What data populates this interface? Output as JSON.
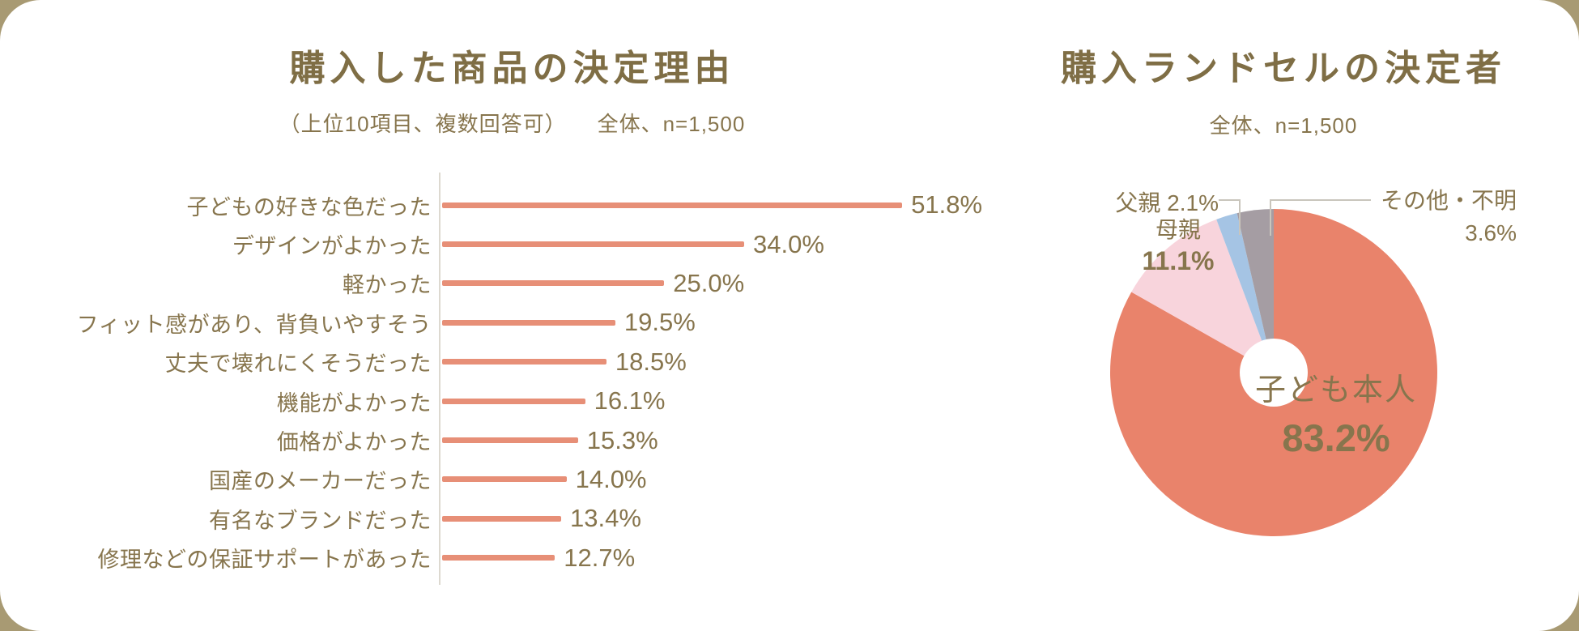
{
  "page": {
    "background_color": "#a89a73",
    "card_color": "#ffffff",
    "text_color": "#87754d",
    "title_color": "#7f6e45"
  },
  "chart_data": [
    {
      "type": "bar",
      "orientation": "horizontal",
      "title": "購入した商品の決定理由",
      "subtitle_parts": [
        "（上位10項目、複数回答可）",
        "全体、n=1,500"
      ],
      "categories": [
        "子どもの好きな色だった",
        "デザインがよかった",
        "軽かった",
        "フィット感があり、背負いやすそう",
        "丈夫で壊れにくそうだった",
        "機能がよかった",
        "価格がよかった",
        "国産のメーカーだった",
        "有名なブランドだった",
        "修理などの保証サポートがあった"
      ],
      "values": [
        51.8,
        34.0,
        25.0,
        19.5,
        18.5,
        16.1,
        15.3,
        14.0,
        13.4,
        12.7
      ],
      "value_labels": [
        "51.8%",
        "34.0%",
        "25.0%",
        "19.5%",
        "18.5%",
        "16.1%",
        "15.3%",
        "14.0%",
        "13.4%",
        "12.7%"
      ],
      "unit": "%",
      "xlim": [
        0,
        55
      ],
      "bar_color": "#e78f77",
      "axis_color": "#ddd9d0",
      "grid": false,
      "legend": "none"
    },
    {
      "type": "pie",
      "title": "購入ランドセルの決定者",
      "subtitle": "全体、n=1,500",
      "start_angle_deg": 0,
      "direction": "clockwise",
      "donut_hole_ratio": 0.21,
      "slices": [
        {
          "label": "子ども本人",
          "value": 83.2,
          "value_label": "83.2%",
          "color": "#e9836b",
          "label_position": "inside"
        },
        {
          "label": "母親",
          "value": 11.1,
          "value_label": "11.1%",
          "color": "#f8d4dc",
          "label_position": "inside"
        },
        {
          "label": "父親",
          "value": 2.1,
          "value_label": "2.1%",
          "color": "#a5c4e4",
          "label_position": "outside-left"
        },
        {
          "label": "その他・不明",
          "value": 3.6,
          "value_label": "3.6%",
          "color": "#a59da3",
          "label_position": "outside-right"
        }
      ]
    }
  ]
}
